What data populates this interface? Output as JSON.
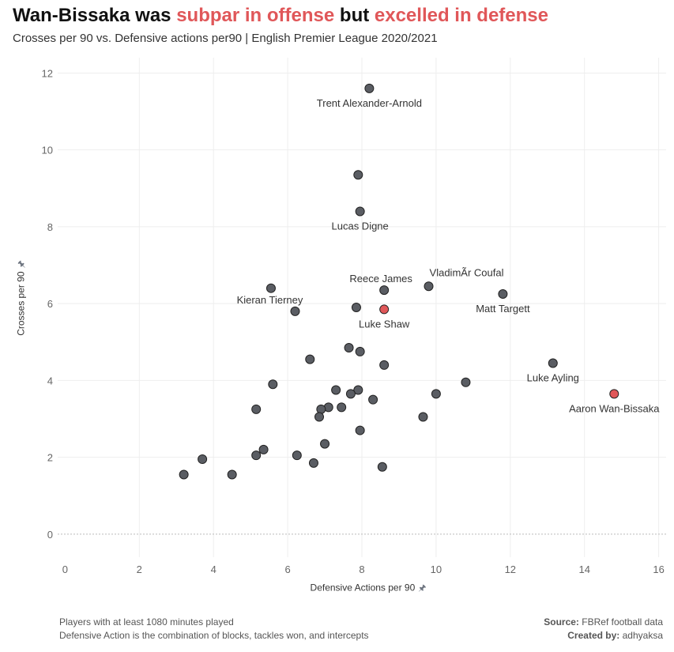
{
  "header": {
    "title_part1": "Wan-Bissaka was ",
    "title_part2": "subpar in offense",
    "title_part3": " but ",
    "title_part4": "excelled in defense",
    "subtitle": "Crosses per 90 vs. Defensive actions per90 | English Premier League 2020/2021"
  },
  "axes": {
    "ylabel": "Crosses per 90",
    "xlabel": "Defensive Actions per 90",
    "pin_icon": "pin-icon"
  },
  "footer": {
    "note1": "Players with at least 1080 minutes played",
    "note2": "Defensive Action is the combination of  blocks, tackles won, and intercepts",
    "source_label": "Source:",
    "source_value": " FBRef football data",
    "created_label": "Created by:",
    "created_value": " adhyaksa"
  },
  "colors": {
    "point": "#5a5d63",
    "highlight": "#e05759",
    "grid": "#eeeeee",
    "zero_line": "#bbbbbb"
  },
  "chart_data": {
    "type": "scatter",
    "title": "Wan-Bissaka was subpar in offense but excelled in defense",
    "xlabel": "Defensive Actions per 90",
    "ylabel": "Crosses per 90",
    "xlim": [
      -0.2,
      16.2
    ],
    "ylim": [
      -0.6,
      12.4
    ],
    "xticks": [
      0,
      2,
      4,
      6,
      8,
      10,
      12,
      14,
      16
    ],
    "yticks": [
      0,
      2,
      4,
      6,
      8,
      10,
      12
    ],
    "grid": true,
    "points": [
      {
        "x": 8.2,
        "y": 11.6,
        "label": "Trent Alexander-Arnold",
        "label_pos": "below"
      },
      {
        "x": 7.9,
        "y": 9.35
      },
      {
        "x": 7.95,
        "y": 8.4,
        "label": "Lucas Digne",
        "label_pos": "below"
      },
      {
        "x": 8.6,
        "y": 6.35,
        "label": "Reece James",
        "label_pos": "above-left"
      },
      {
        "x": 9.8,
        "y": 6.45,
        "label": "VladimÃr Coufal",
        "label_pos": "above-right"
      },
      {
        "x": 11.8,
        "y": 6.25,
        "label": "Matt Targett",
        "label_pos": "below"
      },
      {
        "x": 5.55,
        "y": 6.4
      },
      {
        "x": 6.2,
        "y": 5.8,
        "label": "Kieran Tierney",
        "label_pos": "above-left"
      },
      {
        "x": 7.85,
        "y": 5.9
      },
      {
        "x": 8.6,
        "y": 5.85,
        "label": "Luke Shaw",
        "label_pos": "below",
        "highlight": true
      },
      {
        "x": 7.65,
        "y": 4.85
      },
      {
        "x": 7.95,
        "y": 4.75
      },
      {
        "x": 6.6,
        "y": 4.55
      },
      {
        "x": 8.6,
        "y": 4.4
      },
      {
        "x": 13.15,
        "y": 4.45,
        "label": "Luke Ayling",
        "label_pos": "below"
      },
      {
        "x": 10.8,
        "y": 3.95
      },
      {
        "x": 14.8,
        "y": 3.65,
        "label": "Aaron Wan-Bissaka",
        "label_pos": "below",
        "highlight": true
      },
      {
        "x": 5.6,
        "y": 3.9
      },
      {
        "x": 7.3,
        "y": 3.75
      },
      {
        "x": 7.9,
        "y": 3.75
      },
      {
        "x": 7.7,
        "y": 3.65
      },
      {
        "x": 8.3,
        "y": 3.5
      },
      {
        "x": 10.0,
        "y": 3.65
      },
      {
        "x": 7.1,
        "y": 3.3
      },
      {
        "x": 6.9,
        "y": 3.25
      },
      {
        "x": 7.45,
        "y": 3.3
      },
      {
        "x": 5.15,
        "y": 3.25
      },
      {
        "x": 6.85,
        "y": 3.05
      },
      {
        "x": 9.65,
        "y": 3.05
      },
      {
        "x": 7.95,
        "y": 2.7
      },
      {
        "x": 7.0,
        "y": 2.35
      },
      {
        "x": 5.35,
        "y": 2.2
      },
      {
        "x": 5.15,
        "y": 2.05
      },
      {
        "x": 6.25,
        "y": 2.05
      },
      {
        "x": 3.7,
        "y": 1.95
      },
      {
        "x": 6.7,
        "y": 1.85
      },
      {
        "x": 8.55,
        "y": 1.75
      },
      {
        "x": 3.2,
        "y": 1.55
      },
      {
        "x": 4.5,
        "y": 1.55
      }
    ]
  }
}
